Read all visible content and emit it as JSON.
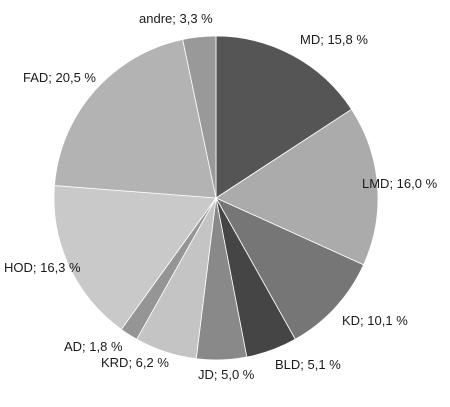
{
  "chart_data": {
    "type": "pie",
    "start_angle_deg": 0,
    "direction": "clockwise",
    "slices": [
      {
        "category": "MD",
        "value": 15.8,
        "label": "MD; 15,8 %",
        "color": "#555555"
      },
      {
        "category": "LMD",
        "value": 16.0,
        "label": "LMD; 16,0 %",
        "color": "#ababab"
      },
      {
        "category": "KD",
        "value": 10.1,
        "label": "KD; 10,1 %",
        "color": "#767676"
      },
      {
        "category": "BLD",
        "value": 5.1,
        "label": "BLD; 5,1 %",
        "color": "#454545"
      },
      {
        "category": "JD",
        "value": 5.0,
        "label": "JD; 5,0 %",
        "color": "#898989"
      },
      {
        "category": "KRD",
        "value": 6.2,
        "label": "KRD; 6,2 %",
        "color": "#c4c4c4"
      },
      {
        "category": "AD",
        "value": 1.8,
        "label": "AD; 1,8 %",
        "color": "#959595"
      },
      {
        "category": "HOD",
        "value": 16.3,
        "label": "HOD; 16,3 %",
        "color": "#c9c9c9"
      },
      {
        "category": "FAD",
        "value": 20.5,
        "label": "FAD; 20,5 %",
        "color": "#b3b3b3"
      },
      {
        "category": "andre",
        "value": 3.3,
        "label": "andre; 3,3 %",
        "color": "#999999"
      }
    ]
  }
}
